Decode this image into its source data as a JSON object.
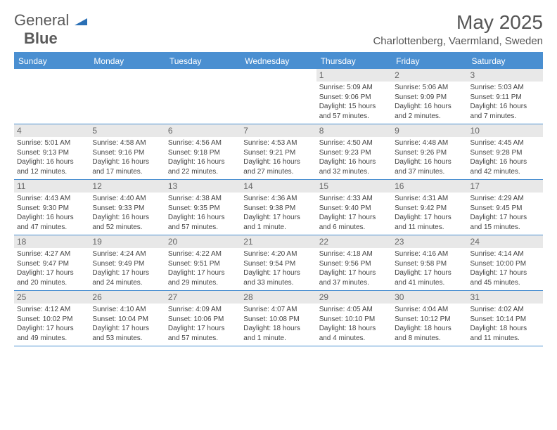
{
  "logo": {
    "part1": "General",
    "part2": "Blue",
    "triangle_color": "#2a6fb5"
  },
  "title": "May 2025",
  "location": "Charlottenberg, Vaermland, Sweden",
  "header_bg": "#4a8fd1",
  "daynum_bg": "#e8e8e8",
  "day_names": [
    "Sunday",
    "Monday",
    "Tuesday",
    "Wednesday",
    "Thursday",
    "Friday",
    "Saturday"
  ],
  "weeks": [
    [
      null,
      null,
      null,
      null,
      {
        "n": "1",
        "sr": "5:09 AM",
        "ss": "9:06 PM",
        "dl": "15 hours and 57 minutes."
      },
      {
        "n": "2",
        "sr": "5:06 AM",
        "ss": "9:09 PM",
        "dl": "16 hours and 2 minutes."
      },
      {
        "n": "3",
        "sr": "5:03 AM",
        "ss": "9:11 PM",
        "dl": "16 hours and 7 minutes."
      }
    ],
    [
      {
        "n": "4",
        "sr": "5:01 AM",
        "ss": "9:13 PM",
        "dl": "16 hours and 12 minutes."
      },
      {
        "n": "5",
        "sr": "4:58 AM",
        "ss": "9:16 PM",
        "dl": "16 hours and 17 minutes."
      },
      {
        "n": "6",
        "sr": "4:56 AM",
        "ss": "9:18 PM",
        "dl": "16 hours and 22 minutes."
      },
      {
        "n": "7",
        "sr": "4:53 AM",
        "ss": "9:21 PM",
        "dl": "16 hours and 27 minutes."
      },
      {
        "n": "8",
        "sr": "4:50 AM",
        "ss": "9:23 PM",
        "dl": "16 hours and 32 minutes."
      },
      {
        "n": "9",
        "sr": "4:48 AM",
        "ss": "9:26 PM",
        "dl": "16 hours and 37 minutes."
      },
      {
        "n": "10",
        "sr": "4:45 AM",
        "ss": "9:28 PM",
        "dl": "16 hours and 42 minutes."
      }
    ],
    [
      {
        "n": "11",
        "sr": "4:43 AM",
        "ss": "9:30 PM",
        "dl": "16 hours and 47 minutes."
      },
      {
        "n": "12",
        "sr": "4:40 AM",
        "ss": "9:33 PM",
        "dl": "16 hours and 52 minutes."
      },
      {
        "n": "13",
        "sr": "4:38 AM",
        "ss": "9:35 PM",
        "dl": "16 hours and 57 minutes."
      },
      {
        "n": "14",
        "sr": "4:36 AM",
        "ss": "9:38 PM",
        "dl": "17 hours and 1 minute."
      },
      {
        "n": "15",
        "sr": "4:33 AM",
        "ss": "9:40 PM",
        "dl": "17 hours and 6 minutes."
      },
      {
        "n": "16",
        "sr": "4:31 AM",
        "ss": "9:42 PM",
        "dl": "17 hours and 11 minutes."
      },
      {
        "n": "17",
        "sr": "4:29 AM",
        "ss": "9:45 PM",
        "dl": "17 hours and 15 minutes."
      }
    ],
    [
      {
        "n": "18",
        "sr": "4:27 AM",
        "ss": "9:47 PM",
        "dl": "17 hours and 20 minutes."
      },
      {
        "n": "19",
        "sr": "4:24 AM",
        "ss": "9:49 PM",
        "dl": "17 hours and 24 minutes."
      },
      {
        "n": "20",
        "sr": "4:22 AM",
        "ss": "9:51 PM",
        "dl": "17 hours and 29 minutes."
      },
      {
        "n": "21",
        "sr": "4:20 AM",
        "ss": "9:54 PM",
        "dl": "17 hours and 33 minutes."
      },
      {
        "n": "22",
        "sr": "4:18 AM",
        "ss": "9:56 PM",
        "dl": "17 hours and 37 minutes."
      },
      {
        "n": "23",
        "sr": "4:16 AM",
        "ss": "9:58 PM",
        "dl": "17 hours and 41 minutes."
      },
      {
        "n": "24",
        "sr": "4:14 AM",
        "ss": "10:00 PM",
        "dl": "17 hours and 45 minutes."
      }
    ],
    [
      {
        "n": "25",
        "sr": "4:12 AM",
        "ss": "10:02 PM",
        "dl": "17 hours and 49 minutes."
      },
      {
        "n": "26",
        "sr": "4:10 AM",
        "ss": "10:04 PM",
        "dl": "17 hours and 53 minutes."
      },
      {
        "n": "27",
        "sr": "4:09 AM",
        "ss": "10:06 PM",
        "dl": "17 hours and 57 minutes."
      },
      {
        "n": "28",
        "sr": "4:07 AM",
        "ss": "10:08 PM",
        "dl": "18 hours and 1 minute."
      },
      {
        "n": "29",
        "sr": "4:05 AM",
        "ss": "10:10 PM",
        "dl": "18 hours and 4 minutes."
      },
      {
        "n": "30",
        "sr": "4:04 AM",
        "ss": "10:12 PM",
        "dl": "18 hours and 8 minutes."
      },
      {
        "n": "31",
        "sr": "4:02 AM",
        "ss": "10:14 PM",
        "dl": "18 hours and 11 minutes."
      }
    ]
  ],
  "labels": {
    "sunrise": "Sunrise:",
    "sunset": "Sunset:",
    "daylight": "Daylight:"
  }
}
